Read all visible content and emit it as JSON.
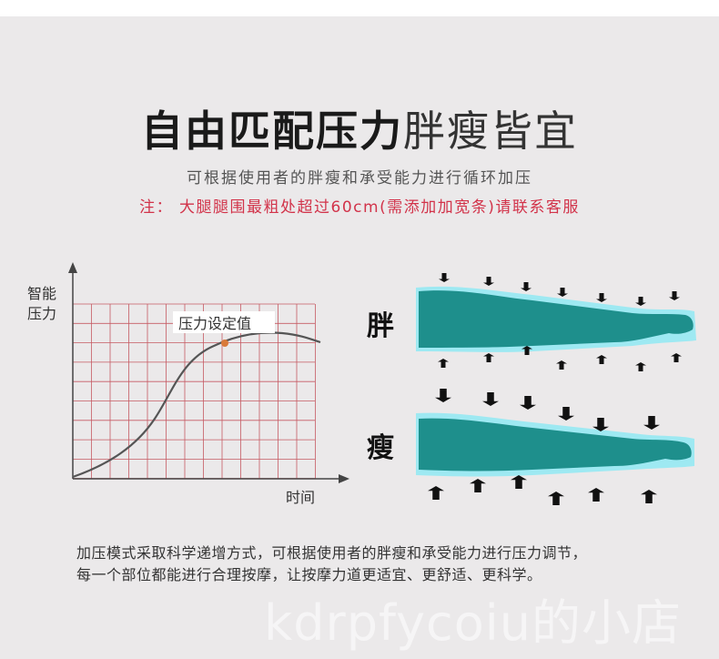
{
  "header": {
    "title_bold": "自由匹配压力",
    "title_light": "胖瘦皆宜",
    "subtitle": "可根据使用者的胖瘦和承受能力进行循环加压",
    "note": "注：  大腿腿围最粗处超过60cm(需添加加宽条)请联系客服"
  },
  "graph": {
    "y_label": [
      "智能",
      "压力"
    ],
    "x_label": "时间",
    "annotation": "压力设定值",
    "grid_color": "#c65a63",
    "curve_color": "#555555",
    "point_color": "#d97a3a"
  },
  "legs": {
    "fat_label": "胖",
    "thin_label": "瘦",
    "leg_color": "#1e8f8c",
    "cuff_color": "#9ee9f2"
  },
  "caption": {
    "line1": "加压模式采取科学递增方式，可根据使用者的胖瘦和承受能力进行压力调节，",
    "line2": "每一个部位都能进行合理按摩，让按摩力道更适宜、更舒适、更科学。"
  },
  "watermark": "kdrpfycoiu的小店"
}
